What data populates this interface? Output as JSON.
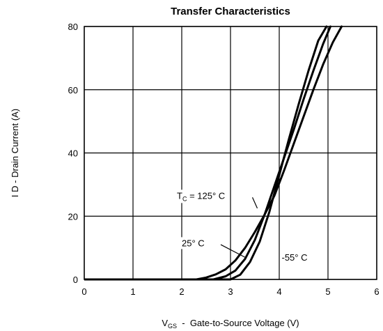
{
  "chart_data": {
    "type": "line",
    "title": "Transfer Characteristics",
    "xlabel": {
      "main": "V",
      "sub": "GS",
      "rest": "  -  Gate-to-Source Voltage (V)"
    },
    "ylabel": "I D  -  Drain Current (A)",
    "xlim": [
      0,
      6
    ],
    "ylim": [
      0,
      80
    ],
    "xticks": [
      0,
      1,
      2,
      3,
      4,
      5,
      6
    ],
    "yticks": [
      0,
      20,
      40,
      60,
      80
    ],
    "grid": true,
    "series": [
      {
        "name": "125°C",
        "x": [
          2.3,
          2.5,
          2.7,
          2.9,
          3.1,
          3.3,
          3.5,
          3.7,
          3.9,
          4.1,
          4.3,
          4.5,
          4.7,
          4.9,
          5.1,
          5.28
        ],
        "y": [
          0,
          0.6,
          1.6,
          3.2,
          6.0,
          10.0,
          15.0,
          20.5,
          26.5,
          34.5,
          43.0,
          51.5,
          60.0,
          68.0,
          75.0,
          80
        ]
      },
      {
        "name": "25°C",
        "x": [
          2.65,
          2.9,
          3.1,
          3.3,
          3.5,
          3.7,
          3.9,
          4.1,
          4.3,
          4.5,
          4.7,
          4.9,
          5.05
        ],
        "y": [
          0,
          1.0,
          2.8,
          6.5,
          12.5,
          20.5,
          29.5,
          38.5,
          47.5,
          57.0,
          66.0,
          74.5,
          80
        ]
      },
      {
        "name": "-55°C",
        "x": [
          3.0,
          3.2,
          3.4,
          3.6,
          3.8,
          4.0,
          4.2,
          4.4,
          4.6,
          4.8,
          4.97
        ],
        "y": [
          0,
          1.5,
          5.5,
          12.0,
          21.5,
          33.0,
          44.5,
          55.5,
          66.0,
          75.5,
          80
        ]
      }
    ],
    "annotations": [
      {
        "id": "t125",
        "prefix": "T",
        "sub": "C",
        "text": " = 125° C",
        "x": 1.9,
        "y": 25.5
      },
      {
        "id": "t25",
        "text": "25° C",
        "x": 2.0,
        "y": 10.5
      },
      {
        "id": "tm55",
        "text": "-55° C",
        "x": 4.05,
        "y": 6.0
      }
    ]
  }
}
